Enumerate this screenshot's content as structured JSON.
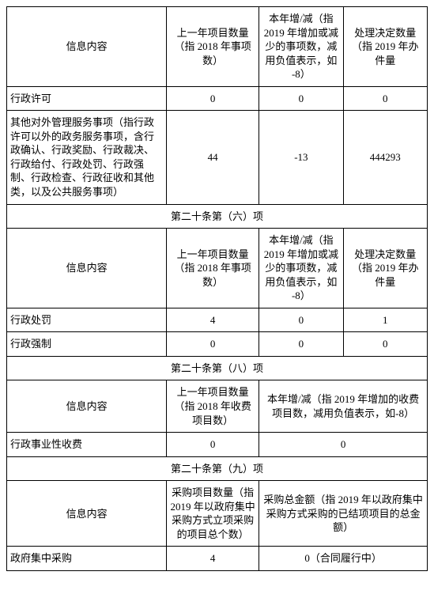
{
  "sectionA": {
    "headers": {
      "infoContent": "信息内容",
      "prevYearCount": "上一年项目数量（指 2018 年事项数）",
      "yearDelta": "本年增/减（指 2019 年增加或减少的事项数，减用负值表示，如 -8）",
      "decisionCount": "处理决定数量（指 2019 年办件量"
    },
    "rows": [
      {
        "label": "行政许可",
        "c1": "0",
        "c2": "0",
        "c3": "0"
      },
      {
        "label": "其他对外管理服务事项（指行政许可以外的政务服务事项，含行政确认、行政奖励、行政裁决、行政给付、行政处罚、行政强制、行政检查、行政征收和其他类，以及公共服务事项）",
        "c1": "44",
        "c2": "-13",
        "c3": "444293"
      }
    ]
  },
  "sectionB": {
    "title": "第二十条第（六）项",
    "headers": {
      "infoContent": "信息内容",
      "prevYearCount": "上一年项目数量（指 2018 年事项数）",
      "yearDelta": "本年增/减（指 2019 年增加或减少的事项数，减用负值表示，如 -8）",
      "decisionCount": "处理决定数量（指 2019 年办件量"
    },
    "rows": [
      {
        "label": "行政处罚",
        "c1": "4",
        "c2": "0",
        "c3": "1"
      },
      {
        "label": "行政强制",
        "c1": "0",
        "c2": "0",
        "c3": "0"
      }
    ]
  },
  "sectionC": {
    "title": "第二十条第（八）项",
    "headers": {
      "infoContent": "信息内容",
      "prevYearCount": "上一年项目数量（指 2018 年收费项目数）",
      "yearDelta2": "本年增/减（指 2019 年增加的收费项目数，减用负值表示，如-8）"
    },
    "rows": [
      {
        "label": "行政事业性收费",
        "c1": "0",
        "c2": "0"
      }
    ]
  },
  "sectionD": {
    "title": "第二十条第（九）项",
    "headers": {
      "infoContent": "信息内容",
      "procCount": "采购项目数量（指 2019 年以政府集中采购方式立项采购的项目总个数）",
      "procTotal": "采购总金额（指 2019 年以政府集中采购方式采购的已结项项目的总金额）"
    },
    "rows": [
      {
        "label": "政府集中采购",
        "c1": "4",
        "c2": "0（合同履行中）"
      }
    ]
  }
}
